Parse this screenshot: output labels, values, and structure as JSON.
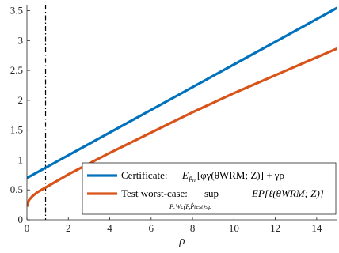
{
  "chart_data": {
    "type": "line",
    "xlabel": "ρ",
    "ylabel": "",
    "xlim": [
      0,
      15
    ],
    "ylim": [
      0,
      3.6
    ],
    "x_ticks": [
      0,
      2,
      4,
      6,
      8,
      10,
      12,
      14
    ],
    "y_ticks": [
      0,
      0.5,
      1,
      1.5,
      2,
      2.5,
      3,
      3.5
    ],
    "grid": false,
    "legend_position": "lower-right",
    "vertical_reference_line": {
      "x": 0.9,
      "style": "dash-dot",
      "color": "#000000"
    },
    "series": [
      {
        "name": "Certificate:",
        "color": "#0072BD",
        "x": [
          0,
          1,
          2,
          3,
          4,
          5,
          6,
          7,
          8,
          9,
          10,
          11,
          12,
          13,
          14,
          15
        ],
        "y": [
          0.7,
          0.89,
          1.08,
          1.27,
          1.46,
          1.65,
          1.84,
          2.03,
          2.22,
          2.41,
          2.6,
          2.79,
          2.98,
          3.17,
          3.36,
          3.55
        ]
      },
      {
        "name": "Test worst-case:",
        "color": "#D95319",
        "x": [
          0,
          0.1,
          0.25,
          0.5,
          1,
          2,
          3,
          4,
          5,
          6,
          7,
          8,
          9,
          10,
          11,
          12,
          13,
          14,
          15
        ],
        "y": [
          0.22,
          0.33,
          0.39,
          0.46,
          0.56,
          0.76,
          0.94,
          1.12,
          1.29,
          1.46,
          1.63,
          1.8,
          1.96,
          2.12,
          2.27,
          2.42,
          2.57,
          2.72,
          2.87
        ]
      }
    ]
  },
  "legend": {
    "certificate": {
      "label": "Certificate:",
      "formula_main": "E",
      "formula_sub": "P̂n",
      "formula_rest": "[φγ(θWRM; Z)] + γρ"
    },
    "test": {
      "label": "Test worst-case:",
      "sup": "sup",
      "sup_sub": "P:Wc(P,P̂test)≤ρ",
      "formula_rest": "EP[ℓ(θWRM; Z)]"
    }
  }
}
